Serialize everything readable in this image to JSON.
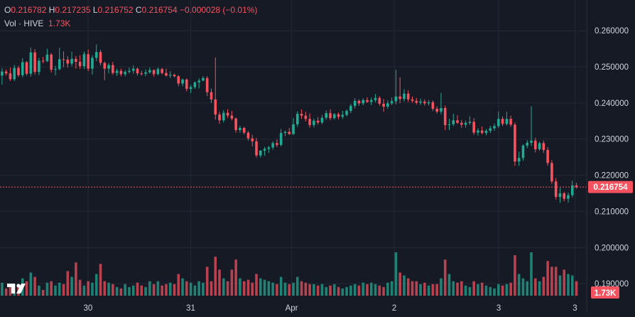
{
  "legend": {
    "o_label": "O",
    "o_value": "0.216782",
    "h_label": "H",
    "h_value": "0.217235",
    "l_label": "L",
    "l_value": "0.216752",
    "c_label": "C",
    "c_value": "0.216754",
    "change": "−0.000028 (−0.01%)",
    "vol_label": "Vol · HIVE",
    "vol_value": "1.73K"
  },
  "price_badge": "0.216754",
  "volume_badge": "1.73K",
  "colors": {
    "up": "#22ab94",
    "down": "#f7525f",
    "background": "#161a25",
    "grid": "#232733",
    "text": "#d1d4dc"
  },
  "chart_data": {
    "type": "candlestick",
    "y_ticks": [
      "0.260000",
      "0.250000",
      "0.240000",
      "0.230000",
      "0.220000",
      "0.210000",
      "0.200000",
      "0.190000"
    ],
    "ylim": [
      0.1855,
      0.2685
    ],
    "x_ticks": [
      "30",
      "31",
      "Apr",
      "2",
      "3",
      "3"
    ],
    "last_price": 0.216754,
    "candles": [
      [
        0.2476,
        0.2496,
        0.2451,
        0.2487,
        0.9
      ],
      [
        0.2487,
        0.2493,
        0.2476,
        0.2482,
        0.5
      ],
      [
        0.2482,
        0.2498,
        0.2461,
        0.2466,
        0.6
      ],
      [
        0.2466,
        0.2505,
        0.2461,
        0.2497,
        0.8
      ],
      [
        0.2497,
        0.2503,
        0.2472,
        0.2477,
        0.7
      ],
      [
        0.2477,
        0.2524,
        0.2471,
        0.2513,
        1.2
      ],
      [
        0.2513,
        0.2516,
        0.2476,
        0.2481,
        1.0
      ],
      [
        0.2481,
        0.2554,
        0.2473,
        0.254,
        1.6
      ],
      [
        0.254,
        0.2549,
        0.2479,
        0.2486,
        1.3
      ],
      [
        0.2486,
        0.2525,
        0.2477,
        0.2517,
        0.7
      ],
      [
        0.2517,
        0.2528,
        0.251,
        0.2516,
        0.4
      ],
      [
        0.2516,
        0.255,
        0.2513,
        0.2534,
        0.9
      ],
      [
        0.2534,
        0.2538,
        0.2484,
        0.2492,
        1.0
      ],
      [
        0.2492,
        0.2503,
        0.2477,
        0.2494,
        0.7
      ],
      [
        0.2494,
        0.2553,
        0.249,
        0.2521,
        0.9
      ],
      [
        0.2521,
        0.2543,
        0.2499,
        0.252,
        0.8
      ],
      [
        0.252,
        0.2529,
        0.2498,
        0.2509,
        1.7
      ],
      [
        0.2509,
        0.2542,
        0.2502,
        0.2522,
        1.3
      ],
      [
        0.2522,
        0.253,
        0.2495,
        0.2514,
        2.3
      ],
      [
        0.2514,
        0.2532,
        0.2494,
        0.2502,
        1.1
      ],
      [
        0.2502,
        0.2542,
        0.2494,
        0.2535,
        0.7
      ],
      [
        0.2535,
        0.2548,
        0.2488,
        0.2495,
        1.0
      ],
      [
        0.2495,
        0.2532,
        0.2479,
        0.2525,
        0.9
      ],
      [
        0.2525,
        0.2562,
        0.2516,
        0.2541,
        1.5
      ],
      [
        0.2541,
        0.2547,
        0.2504,
        0.2511,
        2.2
      ],
      [
        0.2511,
        0.2515,
        0.2463,
        0.2495,
        1.0
      ],
      [
        0.2495,
        0.251,
        0.2482,
        0.2505,
        0.9
      ],
      [
        0.2505,
        0.2514,
        0.2478,
        0.2483,
        0.8
      ],
      [
        0.2483,
        0.2495,
        0.2475,
        0.2489,
        0.6
      ],
      [
        0.2489,
        0.2495,
        0.2474,
        0.248,
        0.5
      ],
      [
        0.248,
        0.2491,
        0.2474,
        0.2486,
        0.8
      ],
      [
        0.2486,
        0.2498,
        0.2482,
        0.2489,
        0.6
      ],
      [
        0.2489,
        0.2504,
        0.2481,
        0.2495,
        0.7
      ],
      [
        0.2495,
        0.2498,
        0.2476,
        0.2482,
        0.9
      ],
      [
        0.2482,
        0.2489,
        0.2476,
        0.2481,
        0.7
      ],
      [
        0.2481,
        0.2493,
        0.2474,
        0.2485,
        0.6
      ],
      [
        0.2485,
        0.2498,
        0.2481,
        0.2491,
        1.0
      ],
      [
        0.2491,
        0.2493,
        0.2473,
        0.248,
        0.8
      ],
      [
        0.248,
        0.2498,
        0.2477,
        0.2494,
        1.0
      ],
      [
        0.2494,
        0.2497,
        0.2479,
        0.2483,
        0.7
      ],
      [
        0.2483,
        0.2495,
        0.2473,
        0.2476,
        0.8
      ],
      [
        0.2476,
        0.2488,
        0.2469,
        0.2478,
        0.9
      ],
      [
        0.2478,
        0.2481,
        0.2471,
        0.2474,
        0.8
      ],
      [
        0.2474,
        0.2477,
        0.2446,
        0.2454,
        1.5
      ],
      [
        0.2454,
        0.2468,
        0.2446,
        0.2465,
        1.2
      ],
      [
        0.2465,
        0.2468,
        0.2432,
        0.2439,
        1.0
      ],
      [
        0.2439,
        0.245,
        0.2427,
        0.2444,
        0.9
      ],
      [
        0.2444,
        0.246,
        0.2439,
        0.2457,
        0.7
      ],
      [
        0.2457,
        0.2468,
        0.244,
        0.2462,
        1.0
      ],
      [
        0.2462,
        0.2474,
        0.246,
        0.2469,
        0.9
      ],
      [
        0.2469,
        0.2474,
        0.2419,
        0.243,
        2.0
      ],
      [
        0.243,
        0.244,
        0.24,
        0.241,
        1.0
      ],
      [
        0.241,
        0.2526,
        0.2354,
        0.2368,
        2.7
      ],
      [
        0.2368,
        0.2376,
        0.2342,
        0.2352,
        1.8
      ],
      [
        0.2352,
        0.238,
        0.2346,
        0.2373,
        1.2
      ],
      [
        0.2373,
        0.2383,
        0.2358,
        0.2365,
        1.0
      ],
      [
        0.2365,
        0.2378,
        0.2352,
        0.2357,
        1.8
      ],
      [
        0.2357,
        0.236,
        0.2318,
        0.2325,
        2.5
      ],
      [
        0.2325,
        0.2337,
        0.2318,
        0.2331,
        1.2
      ],
      [
        0.2331,
        0.2334,
        0.2313,
        0.2318,
        1.0
      ],
      [
        0.2318,
        0.2322,
        0.2296,
        0.2302,
        1.1
      ],
      [
        0.2302,
        0.2312,
        0.228,
        0.2294,
        0.9
      ],
      [
        0.2294,
        0.2303,
        0.2249,
        0.2255,
        1.5
      ],
      [
        0.2255,
        0.227,
        0.2249,
        0.2268,
        1.2
      ],
      [
        0.2268,
        0.2278,
        0.2254,
        0.2273,
        1.1
      ],
      [
        0.2273,
        0.2281,
        0.2262,
        0.2277,
        1.0
      ],
      [
        0.2277,
        0.2294,
        0.2271,
        0.2289,
        0.9
      ],
      [
        0.2289,
        0.2299,
        0.2278,
        0.2284,
        0.8
      ],
      [
        0.2284,
        0.2328,
        0.228,
        0.2317,
        1.3
      ],
      [
        0.2317,
        0.2324,
        0.2308,
        0.232,
        0.9
      ],
      [
        0.232,
        0.2331,
        0.2312,
        0.2314,
        0.8
      ],
      [
        0.2314,
        0.2358,
        0.2312,
        0.2341,
        0.9
      ],
      [
        0.2341,
        0.2377,
        0.2334,
        0.237,
        1.3
      ],
      [
        0.237,
        0.2382,
        0.2356,
        0.2365,
        1.0
      ],
      [
        0.2365,
        0.2376,
        0.2349,
        0.2356,
        0.9
      ],
      [
        0.2356,
        0.2371,
        0.2332,
        0.2339,
        0.8
      ],
      [
        0.2339,
        0.2357,
        0.2332,
        0.2351,
        0.8
      ],
      [
        0.2351,
        0.2361,
        0.234,
        0.2346,
        0.7
      ],
      [
        0.2346,
        0.2367,
        0.2341,
        0.2359,
        0.8
      ],
      [
        0.2359,
        0.238,
        0.2353,
        0.2372,
        0.6
      ],
      [
        0.2372,
        0.2383,
        0.2352,
        0.2358,
        0.7
      ],
      [
        0.2358,
        0.2372,
        0.2354,
        0.2369,
        0.8
      ],
      [
        0.2369,
        0.2374,
        0.2355,
        0.2362,
        0.6
      ],
      [
        0.2362,
        0.2378,
        0.2356,
        0.2367,
        0.5
      ],
      [
        0.2367,
        0.2382,
        0.2363,
        0.2378,
        0.6
      ],
      [
        0.2378,
        0.2398,
        0.2372,
        0.2392,
        0.7
      ],
      [
        0.2392,
        0.2413,
        0.2385,
        0.2406,
        0.8
      ],
      [
        0.2406,
        0.241,
        0.2392,
        0.2399,
        0.7
      ],
      [
        0.2399,
        0.2413,
        0.2394,
        0.2408,
        0.9
      ],
      [
        0.2408,
        0.2416,
        0.24,
        0.2403,
        0.8
      ],
      [
        0.2403,
        0.2415,
        0.2394,
        0.2408,
        0.9
      ],
      [
        0.2408,
        0.2425,
        0.2402,
        0.2414,
        0.8
      ],
      [
        0.2414,
        0.2419,
        0.2393,
        0.2398,
        0.7
      ],
      [
        0.2398,
        0.2411,
        0.2376,
        0.239,
        0.6
      ],
      [
        0.239,
        0.2407,
        0.2384,
        0.2399,
        0.9
      ],
      [
        0.2399,
        0.2415,
        0.2394,
        0.2405,
        1.0
      ],
      [
        0.2405,
        0.2492,
        0.2396,
        0.2418,
        3.0
      ],
      [
        0.2418,
        0.2471,
        0.24,
        0.2411,
        1.6
      ],
      [
        0.2411,
        0.2438,
        0.2404,
        0.2426,
        1.4
      ],
      [
        0.2426,
        0.2435,
        0.2403,
        0.241,
        1.2
      ],
      [
        0.241,
        0.2418,
        0.2401,
        0.2406,
        1.0
      ],
      [
        0.2406,
        0.2414,
        0.2396,
        0.2401,
        1.0
      ],
      [
        0.2401,
        0.2412,
        0.2395,
        0.2404,
        0.8
      ],
      [
        0.2404,
        0.241,
        0.2393,
        0.2399,
        0.9
      ],
      [
        0.2399,
        0.2408,
        0.2393,
        0.2402,
        0.7
      ],
      [
        0.2402,
        0.2407,
        0.2378,
        0.2384,
        0.8
      ],
      [
        0.2384,
        0.2391,
        0.2371,
        0.2376,
        0.8
      ],
      [
        0.2376,
        0.2428,
        0.2369,
        0.2386,
        1.2
      ],
      [
        0.2386,
        0.2393,
        0.2325,
        0.2339,
        2.5
      ],
      [
        0.2339,
        0.2356,
        0.2325,
        0.2341,
        1.5
      ],
      [
        0.2341,
        0.237,
        0.2336,
        0.2352,
        1.0
      ],
      [
        0.2352,
        0.2366,
        0.2342,
        0.2345,
        0.9
      ],
      [
        0.2345,
        0.2353,
        0.2331,
        0.234,
        1.0
      ],
      [
        0.234,
        0.2351,
        0.2332,
        0.2345,
        0.7
      ],
      [
        0.2345,
        0.2363,
        0.2339,
        0.2348,
        0.6
      ],
      [
        0.2348,
        0.2358,
        0.2312,
        0.2318,
        1.0
      ],
      [
        0.2318,
        0.233,
        0.231,
        0.2324,
        0.8
      ],
      [
        0.2324,
        0.2335,
        0.2313,
        0.2317,
        0.9
      ],
      [
        0.2317,
        0.2328,
        0.2311,
        0.2323,
        0.7
      ],
      [
        0.2323,
        0.2337,
        0.2317,
        0.233,
        0.6
      ],
      [
        0.233,
        0.2343,
        0.2323,
        0.2336,
        0.5
      ],
      [
        0.2336,
        0.2377,
        0.233,
        0.2356,
        0.8
      ],
      [
        0.2356,
        0.2363,
        0.2336,
        0.2342,
        0.7
      ],
      [
        0.2342,
        0.2376,
        0.2338,
        0.2356,
        0.8
      ],
      [
        0.2356,
        0.2365,
        0.2334,
        0.234,
        0.9
      ],
      [
        0.234,
        0.2346,
        0.2226,
        0.2238,
        2.8
      ],
      [
        0.2238,
        0.2265,
        0.2226,
        0.2248,
        1.5
      ],
      [
        0.2248,
        0.2286,
        0.224,
        0.2282,
        1.2
      ],
      [
        0.2282,
        0.2297,
        0.2275,
        0.229,
        1.0
      ],
      [
        0.229,
        0.2391,
        0.2281,
        0.2296,
        3.0
      ],
      [
        0.2296,
        0.2304,
        0.2263,
        0.2272,
        1.2
      ],
      [
        0.2272,
        0.2293,
        0.2268,
        0.2289,
        1.0
      ],
      [
        0.2289,
        0.2296,
        0.2262,
        0.227,
        1.3
      ],
      [
        0.227,
        0.2278,
        0.2226,
        0.2234,
        2.4
      ],
      [
        0.2234,
        0.2242,
        0.2176,
        0.2183,
        2.0
      ],
      [
        0.2183,
        0.2192,
        0.2133,
        0.214,
        2.0
      ],
      [
        0.214,
        0.2165,
        0.2124,
        0.215,
        1.4
      ],
      [
        0.215,
        0.2154,
        0.2128,
        0.2135,
        1.8
      ],
      [
        0.2135,
        0.2152,
        0.2124,
        0.2145,
        1.5
      ],
      [
        0.2145,
        0.2185,
        0.2139,
        0.2172,
        1.4
      ],
      [
        0.2172,
        0.2179,
        0.2163,
        0.2168,
        1.0
      ]
    ]
  }
}
